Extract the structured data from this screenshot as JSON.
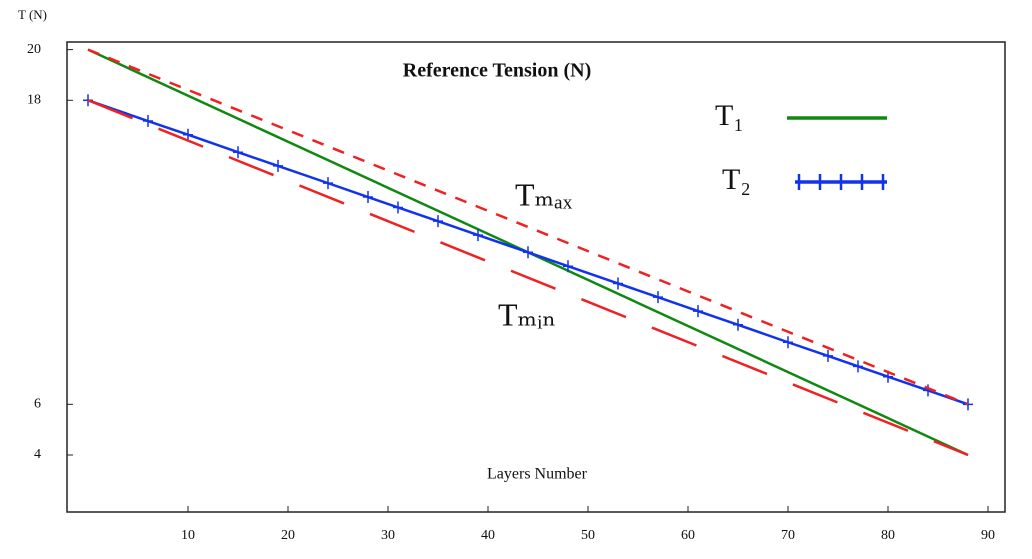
{
  "chart_data": {
    "type": "line",
    "y_label": "T (N)",
    "title": "Reference Tension (N)",
    "x_label": "Layers Number",
    "xlim": [
      -2.1,
      91.7
    ],
    "ylim": [
      1.75,
      20.3
    ],
    "xticks": [
      10,
      20,
      30,
      40,
      50,
      60,
      70,
      80,
      90
    ],
    "yticks": [
      4,
      6,
      18,
      20
    ],
    "annotations": [
      "Tₘₐₓ",
      "Tₘᵢₙ"
    ],
    "series": [
      {
        "name": "T₁",
        "color": "#118811",
        "x": [
          0,
          88
        ],
        "values": [
          20,
          4
        ]
      },
      {
        "name": "T₂",
        "color": "#1133ee",
        "markers": true,
        "x": [
          0,
          6,
          10,
          15,
          19,
          24,
          28,
          31,
          35,
          39,
          44,
          48,
          53,
          57,
          61,
          65,
          70,
          74,
          77,
          80,
          84,
          88
        ],
        "values": [
          18,
          17.18,
          16.64,
          15.95,
          15.41,
          14.73,
          14.18,
          13.77,
          13.23,
          12.68,
          12.0,
          11.45,
          10.77,
          10.23,
          9.68,
          9.14,
          8.45,
          7.91,
          7.5,
          7.09,
          6.55,
          6.0
        ]
      },
      {
        "color": "#ee2222",
        "dash": "12 10",
        "x": [
          0,
          88
        ],
        "values": [
          20,
          6
        ]
      },
      {
        "color": "#ee2222",
        "dash": "48 28",
        "x": [
          0,
          88
        ],
        "values": [
          18,
          4
        ]
      }
    ]
  }
}
